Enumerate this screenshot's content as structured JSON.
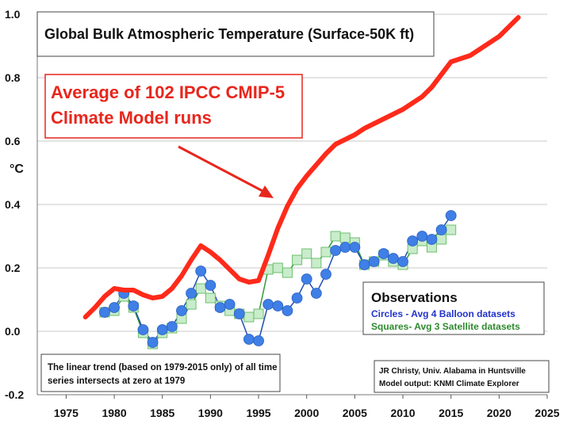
{
  "chart_data": {
    "type": "line",
    "title": "Global Bulk Atmospheric Temperature (Surface-50K ft)",
    "ylabel": "°C",
    "xlabel": "",
    "xlim": [
      1972,
      2025
    ],
    "ylim": [
      -0.2,
      1.0
    ],
    "x_ticks": [
      "1975",
      "1980",
      "1985",
      "1990",
      "1995",
      "2000",
      "2005",
      "2010",
      "2015",
      "2020",
      "2025"
    ],
    "y_ticks": [
      "1.0",
      "0.8",
      "0.6",
      "0.4",
      "0.2",
      "0.0",
      "-0.2"
    ],
    "grid": true,
    "series": [
      {
        "name": "Average of 102 IPCC CMIP-5 Climate Model runs",
        "color": "#ff2a1a",
        "marker": "none",
        "x": [
          1977,
          1978,
          1979,
          1980,
          1981,
          1982,
          1983,
          1984,
          1985,
          1986,
          1987,
          1988,
          1989,
          1990,
          1991,
          1992,
          1993,
          1994,
          1995,
          1996,
          1997,
          1998,
          1999,
          2000,
          2001,
          2002,
          2003,
          2004,
          2005,
          2006,
          2007,
          2008,
          2009,
          2010,
          2011,
          2012,
          2013,
          2014,
          2015,
          2016,
          2017,
          2018,
          2019,
          2020,
          2021,
          2022
        ],
        "y": [
          0.045,
          0.075,
          0.11,
          0.135,
          0.13,
          0.13,
          0.115,
          0.105,
          0.11,
          0.135,
          0.175,
          0.225,
          0.27,
          0.25,
          0.225,
          0.195,
          0.165,
          0.155,
          0.16,
          0.24,
          0.325,
          0.395,
          0.45,
          0.49,
          0.525,
          0.56,
          0.59,
          0.605,
          0.62,
          0.64,
          0.655,
          0.67,
          0.685,
          0.7,
          0.72,
          0.74,
          0.77,
          0.81,
          0.85,
          0.86,
          0.87,
          0.89,
          0.91,
          0.93,
          0.96,
          0.99
        ]
      },
      {
        "name": "Circles - Avg 4 Balloon datasets",
        "color": "#3f7fe6",
        "marker": "circle",
        "x": [
          1979,
          1980,
          1981,
          1982,
          1983,
          1984,
          1985,
          1986,
          1987,
          1988,
          1989,
          1990,
          1991,
          1992,
          1993,
          1994,
          1995,
          1996,
          1997,
          1998,
          1999,
          2000,
          2001,
          2002,
          2003,
          2004,
          2005,
          2006,
          2007,
          2008,
          2009,
          2010,
          2011,
          2012,
          2013,
          2014,
          2015
        ],
        "y": [
          0.06,
          0.075,
          0.12,
          0.08,
          0.005,
          -0.035,
          0.005,
          0.015,
          0.065,
          0.12,
          0.19,
          0.145,
          0.075,
          0.085,
          0.055,
          -0.025,
          -0.03,
          0.085,
          0.08,
          0.065,
          0.105,
          0.165,
          0.12,
          0.18,
          0.255,
          0.265,
          0.265,
          0.21,
          0.22,
          0.245,
          0.23,
          0.22,
          0.285,
          0.3,
          0.29,
          0.32,
          0.365
        ]
      },
      {
        "name": "Squares- Avg 3 Satellite datasets",
        "color": "#2f9b3a",
        "marker": "square",
        "x": [
          1979,
          1980,
          1981,
          1982,
          1983,
          1984,
          1985,
          1986,
          1987,
          1988,
          1989,
          1990,
          1991,
          1992,
          1993,
          1994,
          1995,
          1996,
          1997,
          1998,
          1999,
          2000,
          2001,
          2002,
          2003,
          2004,
          2005,
          2006,
          2007,
          2008,
          2009,
          2010,
          2011,
          2012,
          2013,
          2014,
          2015
        ],
        "y": [
          0.06,
          0.065,
          0.11,
          0.075,
          -0.005,
          -0.04,
          -0.005,
          0.01,
          0.04,
          0.085,
          0.135,
          0.105,
          0.08,
          0.065,
          0.055,
          0.045,
          0.055,
          0.195,
          0.2,
          0.185,
          0.225,
          0.245,
          0.215,
          0.25,
          0.3,
          0.295,
          0.28,
          0.21,
          0.22,
          0.24,
          0.22,
          0.21,
          0.26,
          0.285,
          0.265,
          0.29,
          0.32
        ]
      }
    ],
    "annotations": {
      "model_label": [
        "Average of 102 IPCC CMIP-5",
        "Climate Model runs"
      ],
      "observations_title": "Observations",
      "observations_lines": [
        "Circles - Avg 4 Balloon datasets",
        "Squares- Avg 3 Satellite datasets"
      ],
      "trend_note": [
        "The linear trend (based on 1979-2015 only) of all time",
        "series intersects at zero at 1979"
      ],
      "credit": [
        "JR Christy, Univ. Alabama in Huntsville",
        "Model output: KNMI Climate Explorer"
      ]
    },
    "colors": {
      "model_line": "#ff2a1a",
      "balloon_line": "#1f4fb0",
      "balloon_fill": "#3f7fe6",
      "satellite_line": "#2f9b3a",
      "satellite_fill": "#c9eccb",
      "satellite_border": "#6cbf6e",
      "model_text": "#e8261c",
      "balloon_text": "#2233cc",
      "satellite_text": "#2f8a2f"
    }
  }
}
